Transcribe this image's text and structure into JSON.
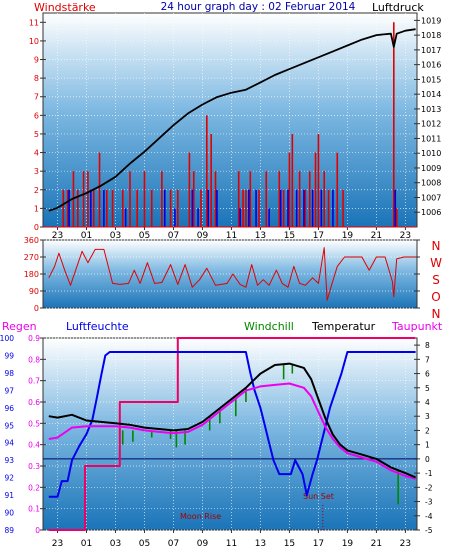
{
  "header": {
    "left_label": "Windstärke",
    "title": "24 hour graph day : 02 Februar 2014",
    "right_label": "Luftdruck"
  },
  "colors": {
    "wind": "#e00000",
    "gust_blue": "#0000dd",
    "pressure": "#000000",
    "humidity": "#0000ee",
    "temperature": "#000000",
    "dewpoint": "#ee00ee",
    "windchill": "#008800",
    "rain": "#ee0066",
    "zero_line": "#000066",
    "plot_top": "#ffffff",
    "plot_bottom": "#1a74b8"
  },
  "chart_data": [
    {
      "type": "bar",
      "panel": "wind-pressure",
      "y_left_ticks": [
        "0",
        "1",
        "2",
        "3",
        "4",
        "5",
        "6",
        "7",
        "8",
        "9",
        "10",
        "11"
      ],
      "y_left_range": [
        0,
        11.5
      ],
      "y_right_ticks": [
        "1006",
        "1007",
        "1008",
        "1009",
        "1010",
        "1011",
        "1012",
        "1013",
        "1014",
        "1015",
        "1016",
        "1017",
        "1018",
        "1019"
      ],
      "y_right_range": [
        1005.0,
        1019.5
      ],
      "x_ticks": [
        "23",
        "01",
        "03",
        "05",
        "07",
        "09",
        "11",
        "13",
        "15",
        "17",
        "19",
        "21",
        "23"
      ],
      "wind_red_bars": [
        {
          "x": 23.4,
          "v": 2
        },
        {
          "x": 23.7,
          "v": 2
        },
        {
          "x": 24.1,
          "v": 3
        },
        {
          "x": 24.4,
          "v": 2
        },
        {
          "x": 24.8,
          "v": 3
        },
        {
          "x": 25.1,
          "v": 3
        },
        {
          "x": 25.5,
          "v": 2
        },
        {
          "x": 25.9,
          "v": 4
        },
        {
          "x": 26.4,
          "v": 2
        },
        {
          "x": 26.8,
          "v": 2
        },
        {
          "x": 27.5,
          "v": 2
        },
        {
          "x": 28.0,
          "v": 3
        },
        {
          "x": 28.5,
          "v": 2
        },
        {
          "x": 29.0,
          "v": 3
        },
        {
          "x": 29.5,
          "v": 2
        },
        {
          "x": 30.2,
          "v": 3
        },
        {
          "x": 30.8,
          "v": 2
        },
        {
          "x": 31.3,
          "v": 2
        },
        {
          "x": 32.1,
          "v": 4
        },
        {
          "x": 32.4,
          "v": 3
        },
        {
          "x": 32.9,
          "v": 2
        },
        {
          "x": 33.3,
          "v": 6
        },
        {
          "x": 33.6,
          "v": 5
        },
        {
          "x": 33.9,
          "v": 3
        },
        {
          "x": 35.5,
          "v": 3
        },
        {
          "x": 35.8,
          "v": 2
        },
        {
          "x": 36.0,
          "v": 2
        },
        {
          "x": 36.3,
          "v": 3
        },
        {
          "x": 36.9,
          "v": 2
        },
        {
          "x": 37.4,
          "v": 3
        },
        {
          "x": 38.3,
          "v": 3
        },
        {
          "x": 38.6,
          "v": 2
        },
        {
          "x": 39.0,
          "v": 4
        },
        {
          "x": 39.2,
          "v": 5
        },
        {
          "x": 39.7,
          "v": 3
        },
        {
          "x": 40.1,
          "v": 2
        },
        {
          "x": 40.4,
          "v": 3
        },
        {
          "x": 40.8,
          "v": 4
        },
        {
          "x": 41.0,
          "v": 5
        },
        {
          "x": 41.4,
          "v": 3
        },
        {
          "x": 41.7,
          "v": 2
        },
        {
          "x": 42.3,
          "v": 4
        },
        {
          "x": 42.7,
          "v": 2
        },
        {
          "x": 46.2,
          "v": 11
        },
        {
          "x": 46.4,
          "v": 1
        }
      ],
      "wind_blue_bars": [
        {
          "x": 23.8,
          "v": 2
        },
        {
          "x": 25.3,
          "v": 2
        },
        {
          "x": 26.2,
          "v": 2
        },
        {
          "x": 27.7,
          "v": 1
        },
        {
          "x": 30.4,
          "v": 2
        },
        {
          "x": 31.1,
          "v": 1
        },
        {
          "x": 32.3,
          "v": 2
        },
        {
          "x": 32.7,
          "v": 1
        },
        {
          "x": 33.4,
          "v": 2
        },
        {
          "x": 34.0,
          "v": 2
        },
        {
          "x": 35.6,
          "v": 1
        },
        {
          "x": 36.2,
          "v": 2
        },
        {
          "x": 36.7,
          "v": 2
        },
        {
          "x": 37.6,
          "v": 1
        },
        {
          "x": 38.4,
          "v": 2
        },
        {
          "x": 38.9,
          "v": 2
        },
        {
          "x": 39.5,
          "v": 2
        },
        {
          "x": 40.0,
          "v": 2
        },
        {
          "x": 40.6,
          "v": 2
        },
        {
          "x": 41.2,
          "v": 2
        },
        {
          "x": 42.0,
          "v": 2
        },
        {
          "x": 46.3,
          "v": 2
        }
      ],
      "pressure": [
        [
          22.4,
          1006.1
        ],
        [
          23.0,
          1006.3
        ],
        [
          24.0,
          1006.9
        ],
        [
          25.0,
          1007.3
        ],
        [
          26.0,
          1007.8
        ],
        [
          27.0,
          1008.4
        ],
        [
          28.0,
          1009.3
        ],
        [
          29.0,
          1010.1
        ],
        [
          30.0,
          1011.0
        ],
        [
          31.0,
          1011.9
        ],
        [
          32.0,
          1012.7
        ],
        [
          33.0,
          1013.3
        ],
        [
          34.0,
          1013.8
        ],
        [
          35.0,
          1014.1
        ],
        [
          36.0,
          1014.3
        ],
        [
          37.0,
          1014.8
        ],
        [
          38.0,
          1015.3
        ],
        [
          39.0,
          1015.7
        ],
        [
          40.0,
          1016.1
        ],
        [
          41.0,
          1016.5
        ],
        [
          42.0,
          1016.9
        ],
        [
          43.0,
          1017.3
        ],
        [
          44.0,
          1017.7
        ],
        [
          45.0,
          1018.0
        ],
        [
          46.0,
          1018.1
        ],
        [
          46.2,
          1017.2
        ],
        [
          46.4,
          1018.1
        ],
        [
          47.0,
          1018.3
        ],
        [
          47.7,
          1018.4
        ]
      ]
    },
    {
      "type": "line",
      "panel": "wind-direction",
      "y_ticks": [
        "0",
        "90",
        "180",
        "270",
        "360"
      ],
      "y_range": [
        0,
        360
      ],
      "direction_letters": [
        "N",
        "W",
        "S",
        "O",
        "N"
      ],
      "direction": [
        [
          22.4,
          160
        ],
        [
          22.8,
          220
        ],
        [
          23.1,
          290
        ],
        [
          23.5,
          200
        ],
        [
          23.9,
          120
        ],
        [
          24.3,
          210
        ],
        [
          24.7,
          300
        ],
        [
          25.1,
          240
        ],
        [
          25.6,
          310
        ],
        [
          26.2,
          310
        ],
        [
          26.8,
          130
        ],
        [
          27.3,
          125
        ],
        [
          27.9,
          130
        ],
        [
          28.3,
          200
        ],
        [
          28.7,
          130
        ],
        [
          29.2,
          240
        ],
        [
          29.7,
          130
        ],
        [
          30.2,
          135
        ],
        [
          30.8,
          230
        ],
        [
          31.3,
          125
        ],
        [
          31.8,
          230
        ],
        [
          32.3,
          110
        ],
        [
          32.8,
          150
        ],
        [
          33.3,
          210
        ],
        [
          33.9,
          120
        ],
        [
          34.3,
          125
        ],
        [
          34.7,
          130
        ],
        [
          35.1,
          180
        ],
        [
          35.6,
          125
        ],
        [
          36.0,
          110
        ],
        [
          36.4,
          230
        ],
        [
          36.8,
          120
        ],
        [
          37.2,
          150
        ],
        [
          37.6,
          120
        ],
        [
          38.1,
          200
        ],
        [
          38.5,
          130
        ],
        [
          38.9,
          110
        ],
        [
          39.3,
          220
        ],
        [
          39.7,
          130
        ],
        [
          40.1,
          120
        ],
        [
          40.6,
          160
        ],
        [
          41.0,
          130
        ],
        [
          41.4,
          320
        ],
        [
          41.6,
          40
        ],
        [
          41.9,
          120
        ],
        [
          42.3,
          220
        ],
        [
          42.8,
          270
        ],
        [
          43.4,
          270
        ],
        [
          44.0,
          270
        ],
        [
          44.5,
          200
        ],
        [
          45.0,
          270
        ],
        [
          45.6,
          270
        ],
        [
          46.1,
          140
        ],
        [
          46.2,
          60
        ],
        [
          46.4,
          260
        ],
        [
          46.9,
          270
        ],
        [
          47.7,
          270
        ]
      ]
    },
    {
      "type": "line",
      "panel": "climate",
      "legend": [
        "Regen",
        "Luftfeuchte",
        "Windchill",
        "Temperatur",
        "Taupunkt"
      ],
      "y_rain_ticks": [
        "0",
        "0.1",
        "0.2",
        "0.3",
        "0.4",
        "0.5",
        "0.6",
        "0.7",
        "0.8",
        "0.9"
      ],
      "y_rain_range": [
        0,
        0.9
      ],
      "y_hum_ticks": [
        "89",
        "90",
        "91",
        "92",
        "93",
        "94",
        "95",
        "96",
        "97",
        "98",
        "99",
        "100"
      ],
      "y_hum_range": [
        89,
        100
      ],
      "y_temp_ticks": [
        "-5",
        "-4",
        "-3",
        "-2",
        "-1",
        "0",
        "1",
        "2",
        "3",
        "4",
        "5",
        "6",
        "7",
        "8"
      ],
      "y_temp_range": [
        -5,
        8.5
      ],
      "x_ticks": [
        "23",
        "01",
        "03",
        "05",
        "07",
        "09",
        "11",
        "13",
        "15",
        "17",
        "19",
        "21",
        "23"
      ],
      "annotations": [
        "Moon Rise",
        "Sun Set"
      ],
      "humidity": [
        [
          22.4,
          90.9
        ],
        [
          23.0,
          90.9
        ],
        [
          23.3,
          91.8
        ],
        [
          23.7,
          91.8
        ],
        [
          24.0,
          93.0
        ],
        [
          24.5,
          93.8
        ],
        [
          25.0,
          94.5
        ],
        [
          25.4,
          95.3
        ],
        [
          25.7,
          96.5
        ],
        [
          26.0,
          97.8
        ],
        [
          26.3,
          99.0
        ],
        [
          26.6,
          99.2
        ],
        [
          36.0,
          99.2
        ],
        [
          36.3,
          98.0
        ],
        [
          36.6,
          97.0
        ],
        [
          37.0,
          96.0
        ],
        [
          37.3,
          95.0
        ],
        [
          37.6,
          94.0
        ],
        [
          37.9,
          93.0
        ],
        [
          38.3,
          92.2
        ],
        [
          39.1,
          92.2
        ],
        [
          39.4,
          93.0
        ],
        [
          39.9,
          92.2
        ],
        [
          40.2,
          91.0
        ],
        [
          40.6,
          92.2
        ],
        [
          40.9,
          93.0
        ],
        [
          41.2,
          94.0
        ],
        [
          41.5,
          95.0
        ],
        [
          41.8,
          96.0
        ],
        [
          42.2,
          97.0
        ],
        [
          42.6,
          98.0
        ],
        [
          43.0,
          99.2
        ],
        [
          47.7,
          99.2
        ]
      ],
      "temperature": [
        [
          22.4,
          3.0
        ],
        [
          23.0,
          2.9
        ],
        [
          24.0,
          3.1
        ],
        [
          25.0,
          2.7
        ],
        [
          26.0,
          2.6
        ],
        [
          27.0,
          2.5
        ],
        [
          28.0,
          2.4
        ],
        [
          29.0,
          2.2
        ],
        [
          30.0,
          2.1
        ],
        [
          31.0,
          2.0
        ],
        [
          32.0,
          2.1
        ],
        [
          33.0,
          2.6
        ],
        [
          34.0,
          3.4
        ],
        [
          35.0,
          4.2
        ],
        [
          36.0,
          5.0
        ],
        [
          37.0,
          6.0
        ],
        [
          38.0,
          6.6
        ],
        [
          39.0,
          6.7
        ],
        [
          40.0,
          6.4
        ],
        [
          40.5,
          5.6
        ],
        [
          41.0,
          4.2
        ],
        [
          41.5,
          2.8
        ],
        [
          42.0,
          1.7
        ],
        [
          42.5,
          1.0
        ],
        [
          43.0,
          0.6
        ],
        [
          44.0,
          0.3
        ],
        [
          45.0,
          0.0
        ],
        [
          46.0,
          -0.6
        ],
        [
          47.0,
          -1.0
        ],
        [
          47.7,
          -1.3
        ]
      ],
      "dewpoint": [
        [
          22.4,
          1.4
        ],
        [
          23.0,
          1.5
        ],
        [
          24.0,
          2.2
        ],
        [
          25.0,
          2.3
        ],
        [
          26.0,
          2.3
        ],
        [
          27.0,
          2.3
        ],
        [
          28.0,
          2.2
        ],
        [
          29.0,
          2.0
        ],
        [
          30.0,
          1.9
        ],
        [
          31.0,
          1.8
        ],
        [
          32.0,
          1.9
        ],
        [
          33.0,
          2.4
        ],
        [
          34.0,
          3.2
        ],
        [
          35.0,
          4.0
        ],
        [
          36.0,
          4.8
        ],
        [
          37.0,
          5.1
        ],
        [
          38.0,
          5.2
        ],
        [
          39.0,
          5.3
        ],
        [
          40.0,
          5.0
        ],
        [
          40.5,
          4.4
        ],
        [
          41.0,
          3.3
        ],
        [
          41.5,
          2.2
        ],
        [
          42.0,
          1.4
        ],
        [
          42.5,
          0.8
        ],
        [
          43.0,
          0.4
        ],
        [
          44.0,
          0.1
        ],
        [
          45.0,
          -0.2
        ],
        [
          46.0,
          -0.8
        ],
        [
          47.0,
          -1.2
        ],
        [
          47.7,
          -1.4
        ]
      ],
      "windchill_drops": [
        [
          27.5,
          2.0,
          1.0
        ],
        [
          28.2,
          2.0,
          1.2
        ],
        [
          29.5,
          2.0,
          1.5
        ],
        [
          30.8,
          2.0,
          1.4
        ],
        [
          31.2,
          2.0,
          0.8
        ],
        [
          31.8,
          2.0,
          1.0
        ],
        [
          33.5,
          3.0,
          2.0
        ],
        [
          34.2,
          3.5,
          2.5
        ],
        [
          35.3,
          4.3,
          3.0
        ],
        [
          36.0,
          5.0,
          4.0
        ],
        [
          38.6,
          6.6,
          5.6
        ],
        [
          39.2,
          6.7,
          6.0
        ],
        [
          46.5,
          -0.8,
          -3.2
        ]
      ],
      "rain_cumulative": [
        [
          22.4,
          0.0
        ],
        [
          24.9,
          0.0
        ],
        [
          24.9,
          0.3
        ],
        [
          27.3,
          0.3
        ],
        [
          27.3,
          0.6
        ],
        [
          31.3,
          0.6
        ],
        [
          31.3,
          0.9
        ],
        [
          47.7,
          0.9
        ]
      ],
      "zero_line": 0,
      "moon_rise_x": 31.3,
      "sun_set_x": 41.3
    }
  ]
}
